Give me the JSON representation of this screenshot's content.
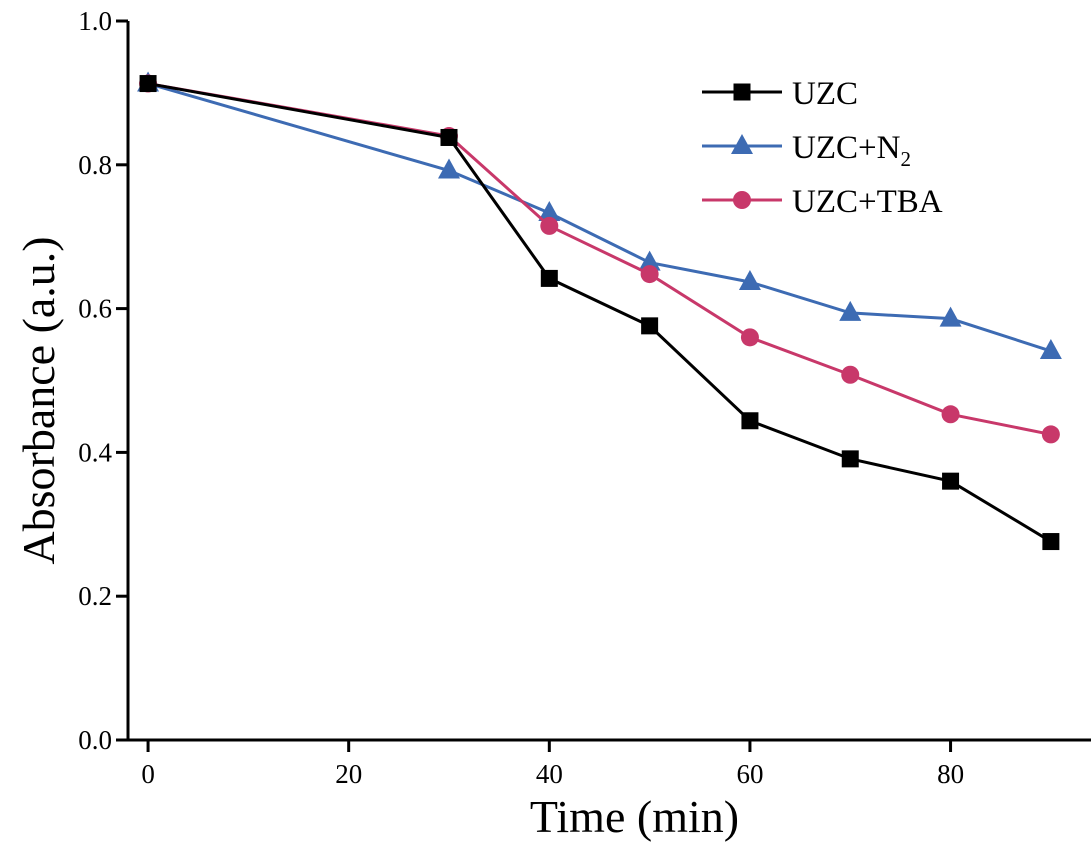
{
  "chart_data": {
    "type": "line",
    "xlabel": "Time (min)",
    "ylabel": "Absorbance (a.u.)",
    "xlim": [
      -2,
      94
    ],
    "ylim": [
      0.0,
      1.0
    ],
    "xticks": [
      0,
      20,
      40,
      60,
      80
    ],
    "xtick_labels": [
      "0",
      "20",
      "40",
      "60",
      "80"
    ],
    "yticks": [
      0.0,
      0.2,
      0.4,
      0.6,
      0.8,
      1.0
    ],
    "ytick_labels": [
      "0.0",
      "0.2",
      "0.4",
      "0.6",
      "0.8",
      "1.0"
    ],
    "grid": false,
    "legend_position": "top-right",
    "series": [
      {
        "name": "UZC",
        "label_main": "UZC",
        "label_sub": "",
        "color": "#000000",
        "marker": "square",
        "x": [
          0,
          30,
          40,
          50,
          60,
          70,
          80,
          90
        ],
        "y": [
          0.913,
          0.838,
          0.642,
          0.576,
          0.444,
          0.391,
          0.36,
          0.276
        ]
      },
      {
        "name": "UZC+N2",
        "label_main": "UZC+N",
        "label_sub": "2",
        "color": "#3d6bb3",
        "marker": "triangle",
        "x": [
          0,
          30,
          40,
          50,
          60,
          70,
          80,
          90
        ],
        "y": [
          0.913,
          0.792,
          0.733,
          0.664,
          0.637,
          0.594,
          0.586,
          0.541
        ]
      },
      {
        "name": "UZC+TBA",
        "label_main": "UZC+TBA",
        "label_sub": "",
        "color": "#c8386a",
        "marker": "circle",
        "x": [
          0,
          30,
          40,
          50,
          60,
          70,
          80,
          90
        ],
        "y": [
          0.913,
          0.84,
          0.715,
          0.648,
          0.56,
          0.508,
          0.453,
          0.425
        ]
      }
    ]
  }
}
